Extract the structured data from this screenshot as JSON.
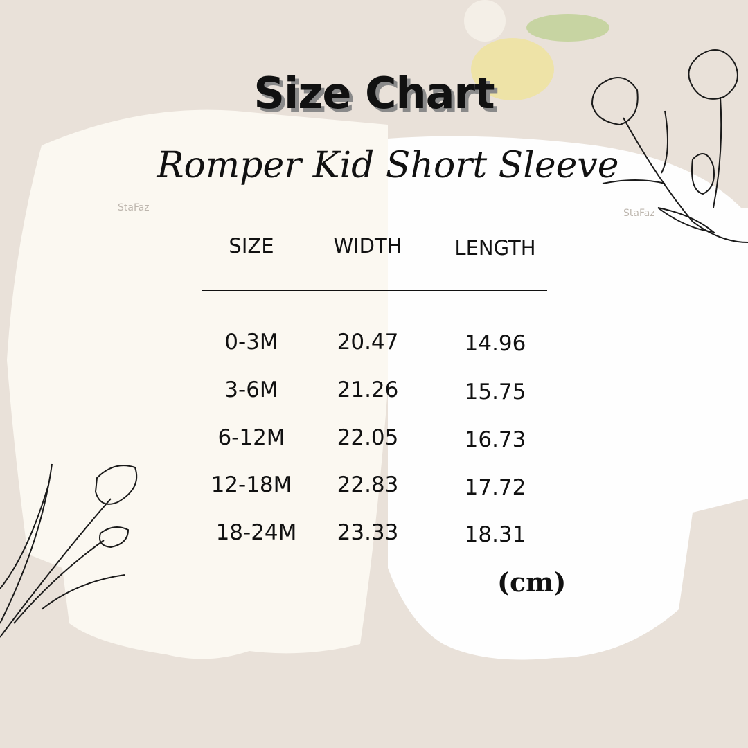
{
  "title": "Size Chart",
  "subtitle": "Romper Kid Short Sleeve",
  "watermark": "StaFaz",
  "table": {
    "headers": [
      "SIZE",
      "WIDTH",
      "LENGTH"
    ],
    "rows": [
      [
        "0-3M",
        "20.47",
        "14.96"
      ],
      [
        "3-6M",
        "21.26",
        "15.75"
      ],
      [
        "6-12M",
        "22.05",
        "16.73"
      ],
      [
        "12-18M",
        "22.83",
        "17.72"
      ],
      [
        "18-24M",
        "23.33",
        "18.31"
      ]
    ]
  },
  "unit": "(cm)",
  "colors": {
    "background": "#e9e1d9",
    "text": "#111111",
    "garment": "#fbf9f4"
  }
}
